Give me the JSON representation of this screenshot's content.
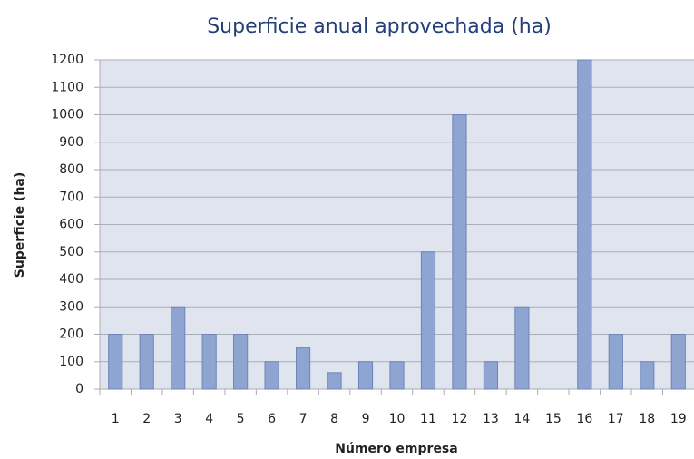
{
  "chart_data": {
    "type": "bar",
    "title": "Superficie anual aprovechada (ha)",
    "x_label": "Número empresa",
    "y_label": "Superficie (ha)",
    "categories": [
      "1",
      "2",
      "3",
      "4",
      "5",
      "6",
      "7",
      "8",
      "9",
      "10",
      "11",
      "12",
      "13",
      "14",
      "15",
      "16",
      "17",
      "18",
      "19"
    ],
    "values": [
      200,
      200,
      300,
      200,
      200,
      100,
      150,
      60,
      100,
      100,
      500,
      1000,
      100,
      300,
      0,
      1200,
      200,
      100,
      200
    ],
    "color": "#8fa5d1",
    "ylim": [
      0,
      1200
    ],
    "yticks": [
      0,
      100,
      200,
      300,
      400,
      500,
      600,
      700,
      800,
      900,
      1000,
      1100,
      1200
    ],
    "grid": true
  }
}
